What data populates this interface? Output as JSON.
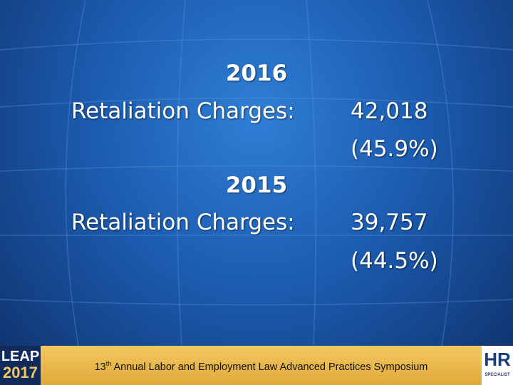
{
  "slide": {
    "entries": [
      {
        "year": "2016",
        "label": "Retaliation Charges:",
        "count": "42,018",
        "share": "(45.9%)"
      },
      {
        "year": "2015",
        "label": "Retaliation Charges:",
        "count": "39,757",
        "share": "(44.5%)"
      }
    ],
    "footer": {
      "ordinal": "13",
      "suffix": "th",
      "text": "Annual Labor and Employment Law Advanced Practices Symposium"
    },
    "logo_left": {
      "line1": "LEAP",
      "line2": "2017"
    },
    "logo_right": {
      "line1": "HR",
      "line2": "SPECIALIST"
    }
  }
}
